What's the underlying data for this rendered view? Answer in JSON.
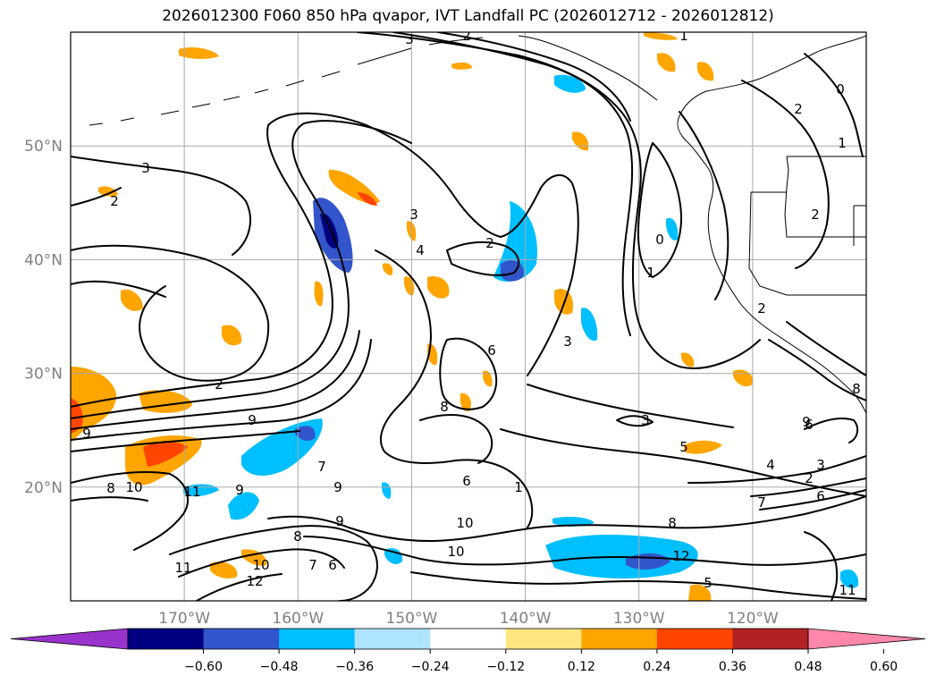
{
  "title": "2026012300 F060 850 hPa qvapor, IVT Landfall PC (2026012712 - 2026012812)",
  "map": {
    "lon_range": [
      -180,
      -110
    ],
    "lat_range": [
      10,
      60
    ],
    "lon_ticks": [
      {
        "lon": -170,
        "label": "170°W"
      },
      {
        "lon": -160,
        "label": "160°W"
      },
      {
        "lon": -150,
        "label": "150°W"
      },
      {
        "lon": -140,
        "label": "140°W"
      },
      {
        "lon": -130,
        "label": "130°W"
      },
      {
        "lon": -120,
        "label": "120°W"
      }
    ],
    "lat_ticks": [
      {
        "lat": 20,
        "label": "20°N"
      },
      {
        "lat": 30,
        "label": "30°N"
      },
      {
        "lat": 40,
        "label": "40°N"
      },
      {
        "lat": 50,
        "label": "50°N"
      }
    ],
    "grid": true
  },
  "colorbar": {
    "ticks": [
      "−0.60",
      "−0.48",
      "−0.36",
      "−0.24",
      "−0.12",
      "0.12",
      "0.24",
      "0.36",
      "0.48",
      "0.60"
    ],
    "colors": [
      "#9933cc",
      "#000080",
      "#3355cc",
      "#00bfff",
      "#aee4ff",
      "#ffffff",
      "#ffe680",
      "#ffa500",
      "#ff4500",
      "#b22222",
      "#ff88aa"
    ],
    "extend": "both"
  },
  "contour_labels": [
    "3",
    "2",
    "1",
    "0",
    "2",
    "1",
    "2",
    "3",
    "2",
    "3",
    "4",
    "2",
    "1",
    "0",
    "6",
    "3",
    "2",
    "9",
    "8",
    "5",
    "6",
    "4",
    "3",
    "2",
    "1",
    "9",
    "10",
    "11",
    "9",
    "8",
    "7",
    "9",
    "8",
    "6",
    "10",
    "10",
    "11",
    "12",
    "5",
    "7",
    "6",
    "9",
    "8",
    "11",
    "10",
    "12",
    "9",
    "6",
    "7",
    "8",
    "3",
    "2"
  ]
}
